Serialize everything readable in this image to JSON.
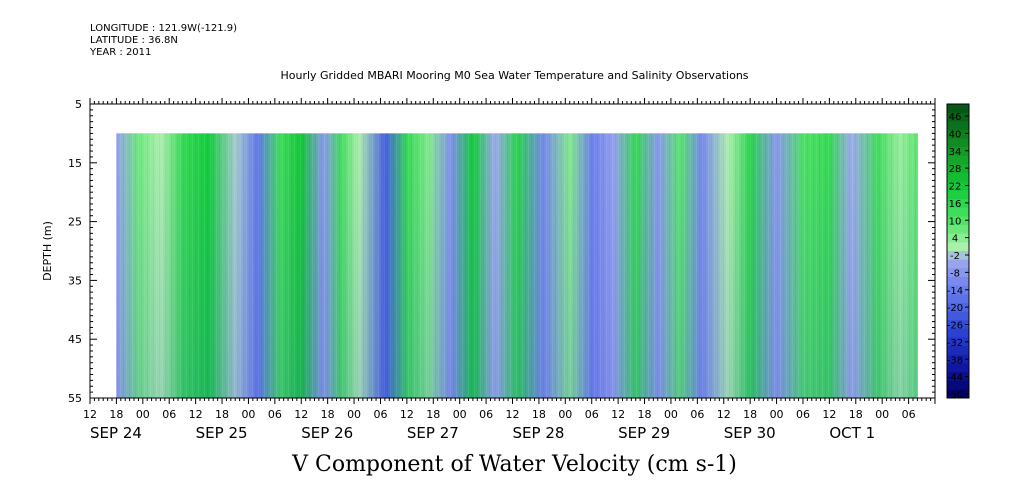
{
  "header": {
    "longitude": "LONGITUDE : 121.9W(-121.9)",
    "latitude": "LATITUDE : 36.8N",
    "year": "YEAR : 2011"
  },
  "chart_data": {
    "type": "heatmap",
    "title": "Hourly Gridded MBARI Mooring M0 Sea Water Temperature and Salinity Observations",
    "variable_label": "V Component of Water Velocity (cm s-1)",
    "ylabel": "DEPTH (m)",
    "y_ticks": [
      5,
      15,
      25,
      35,
      45,
      55
    ],
    "ylim": [
      5,
      55
    ],
    "y_inverted": true,
    "data_depth_range": [
      10,
      55
    ],
    "time_range_hours": [
      0,
      192
    ],
    "data_time_range_hours": [
      6,
      188
    ],
    "hour_tick_labels": [
      "12",
      "18",
      "00",
      "06",
      "12",
      "18",
      "00",
      "06",
      "12",
      "18",
      "00",
      "06",
      "12",
      "18",
      "00",
      "06",
      "12",
      "18",
      "00",
      "06",
      "12",
      "18",
      "00",
      "06",
      "12",
      "18",
      "00",
      "06",
      "12",
      "18",
      "00",
      "06"
    ],
    "date_labels": [
      {
        "label": "SEP 24",
        "hour": 0
      },
      {
        "label": "SEP 25",
        "hour": 24
      },
      {
        "label": "SEP 26",
        "hour": 48
      },
      {
        "label": "SEP 27",
        "hour": 72
      },
      {
        "label": "SEP 28",
        "hour": 96
      },
      {
        "label": "SEP 29",
        "hour": 120
      },
      {
        "label": "SEP 30",
        "hour": 144
      },
      {
        "label": "OCT  1",
        "hour": 168
      }
    ],
    "colorbar": {
      "labels": [
        46,
        40,
        34,
        28,
        22,
        16,
        10,
        4,
        -2,
        -8,
        -14,
        -20,
        -26,
        -32,
        -38,
        -44,
        -50
      ],
      "range": [
        -50,
        52
      ]
    },
    "bands": [
      {
        "t": 6,
        "v": -4
      },
      {
        "t": 11,
        "v": 8
      },
      {
        "t": 16,
        "v": 2
      },
      {
        "t": 21,
        "v": 16
      },
      {
        "t": 27,
        "v": 22
      },
      {
        "t": 33,
        "v": 0
      },
      {
        "t": 38,
        "v": -14
      },
      {
        "t": 43,
        "v": 14
      },
      {
        "t": 48,
        "v": 24
      },
      {
        "t": 53,
        "v": -6
      },
      {
        "t": 57,
        "v": 14
      },
      {
        "t": 61,
        "v": 2
      },
      {
        "t": 67,
        "v": -20
      },
      {
        "t": 72,
        "v": 16
      },
      {
        "t": 77,
        "v": 6
      },
      {
        "t": 82,
        "v": -8
      },
      {
        "t": 87,
        "v": 22
      },
      {
        "t": 92,
        "v": -2
      },
      {
        "t": 97,
        "v": 18
      },
      {
        "t": 103,
        "v": -10
      },
      {
        "t": 109,
        "v": 6
      },
      {
        "t": 114,
        "v": -12
      },
      {
        "t": 119,
        "v": -4
      },
      {
        "t": 124,
        "v": 16
      },
      {
        "t": 129,
        "v": -6
      },
      {
        "t": 134,
        "v": 10
      },
      {
        "t": 139,
        "v": -10
      },
      {
        "t": 145,
        "v": 2
      },
      {
        "t": 150,
        "v": 18
      },
      {
        "t": 156,
        "v": -6
      },
      {
        "t": 162,
        "v": 12
      },
      {
        "t": 168,
        "v": 16
      },
      {
        "t": 173,
        "v": -2
      },
      {
        "t": 179,
        "v": 14
      },
      {
        "t": 184,
        "v": 4
      },
      {
        "t": 188,
        "v": 10
      }
    ]
  }
}
